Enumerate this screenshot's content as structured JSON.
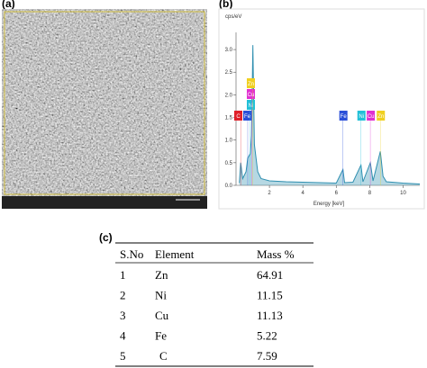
{
  "panels": {
    "a": "(a)",
    "b": "(b)",
    "c": "(c)"
  },
  "chart_data": {
    "type": "line",
    "y_label": "cps/eV",
    "x_label": "Energy [keV]",
    "x": [
      0.2,
      0.28,
      0.4,
      0.6,
      0.7,
      0.85,
      0.93,
      1.01,
      1.1,
      1.3,
      1.5,
      2,
      3,
      4,
      5,
      6,
      6.4,
      6.5,
      7,
      7.48,
      7.6,
      8.04,
      8.2,
      8.64,
      8.8,
      9,
      10,
      11
    ],
    "series": [
      {
        "color": "#2f8fb0",
        "values": [
          0.05,
          0.5,
          0.15,
          0.3,
          0.6,
          0.7,
          1.1,
          3.1,
          0.9,
          0.3,
          0.15,
          0.1,
          0.08,
          0.07,
          0.06,
          0.05,
          0.35,
          0.06,
          0.07,
          0.45,
          0.08,
          0.5,
          0.1,
          0.75,
          0.2,
          0.08,
          0.05,
          0.03
        ]
      }
    ],
    "xlim": [
      0,
      11
    ],
    "ylim": [
      0,
      3.3
    ],
    "xticks": [
      2,
      4,
      6,
      8,
      10
    ],
    "yticks": [
      {
        "value": 0,
        "label": "0.0"
      },
      {
        "value": 0.5,
        "label": "0.5"
      },
      {
        "value": 1,
        "label": "1.0"
      },
      {
        "value": 1.5,
        "label": "1.5"
      },
      {
        "value": 2,
        "label": "2.0"
      },
      {
        "value": 2.5,
        "label": "2.5"
      },
      {
        "value": 3,
        "label": "3.0"
      }
    ],
    "markers": [
      {
        "label": "C",
        "x": 0.28,
        "color": "#e0202a"
      },
      {
        "label": "Fe",
        "x": 0.7,
        "color": "#2a4fd8"
      },
      {
        "label": "Ni",
        "x": 0.85,
        "color": "#22c0d8"
      },
      {
        "label": "Cu",
        "x": 0.93,
        "color": "#e030d0"
      },
      {
        "label": "Zn",
        "x": 1.01,
        "color": "#f0d020"
      },
      {
        "label": "Fe",
        "x": 6.4,
        "color": "#2a4fd8"
      },
      {
        "label": "Ni",
        "x": 7.48,
        "color": "#22c0d8"
      },
      {
        "label": "Cu",
        "x": 8.04,
        "color": "#e030d0"
      },
      {
        "label": "Zn",
        "x": 8.64,
        "color": "#f0d020"
      }
    ]
  },
  "table": {
    "header": [
      "S.No",
      "Element",
      "Mass %"
    ],
    "rows": [
      [
        "1",
        "Zn",
        "64.91"
      ],
      [
        "2",
        "Ni",
        "11.15"
      ],
      [
        "3",
        "Cu",
        "11.13"
      ],
      [
        "4",
        "Fe",
        "5.22"
      ],
      [
        "5",
        "C",
        "7.59"
      ]
    ]
  }
}
